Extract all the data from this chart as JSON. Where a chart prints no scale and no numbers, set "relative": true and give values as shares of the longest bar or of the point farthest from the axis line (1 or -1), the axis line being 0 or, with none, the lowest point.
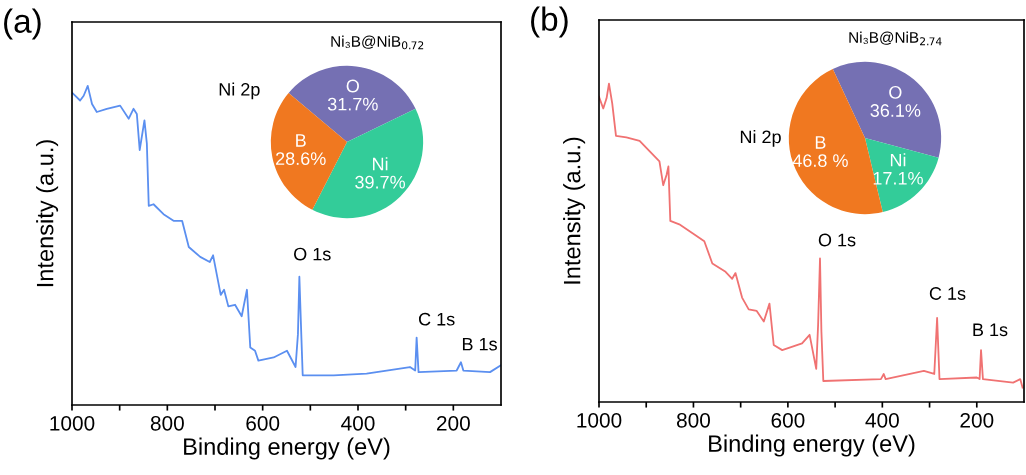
{
  "chart_data": [
    {
      "type": "line",
      "title": "(a)",
      "xlabel": "Binding energy (eV)",
      "ylabel": "Intensity (a.u.)",
      "relative": true,
      "xlim": [
        1000,
        100
      ],
      "xticks": [
        1000,
        {
          "value": 900,
          "label": null
        },
        800,
        {
          "value": 700,
          "label": null
        },
        600,
        {
          "value": 500,
          "label": null
        },
        400,
        {
          "value": 300,
          "label": null
        },
        200
      ],
      "series": [
        {
          "color": "#5b8ff0",
          "x": [
            1000,
            983,
            975.5,
            967,
            958,
            948,
            927,
            899,
            881,
            871,
            864,
            858,
            848,
            843,
            839,
            829,
            808,
            787,
            769,
            755,
            731,
            711,
            704,
            696,
            688,
            681,
            672,
            658,
            644,
            633,
            626,
            616,
            609,
            577,
            549,
            531,
            526,
            523,
            519,
            516,
            451,
            382,
            291,
            280,
            277,
            273,
            193,
            184,
            179,
            123,
            101
          ],
          "values": [
            0.979,
            0.954,
            0.969,
            1.0,
            0.943,
            0.918,
            0.928,
            0.938,
            0.897,
            0.928,
            0.912,
            0.799,
            0.892,
            0.82,
            0.624,
            0.629,
            0.598,
            0.577,
            0.577,
            0.495,
            0.464,
            0.448,
            0.469,
            0.407,
            0.345,
            0.361,
            0.309,
            0.314,
            0.278,
            0.361,
            0.18,
            0.17,
            0.139,
            0.149,
            0.17,
            0.119,
            0.222,
            0.402,
            0.222,
            0.093,
            0.093,
            0.098,
            0.119,
            0.108,
            0.211,
            0.103,
            0.108,
            0.134,
            0.108,
            0.103,
            0.124
          ]
        }
      ],
      "annotations": [
        "Ni 2p",
        "O 1s",
        "C 1s",
        "B 1s"
      ]
    },
    {
      "type": "pie",
      "title": "Ni₃B@NiB$_{0.72}$",
      "categories": [
        "O",
        "Ni",
        "B"
      ],
      "values": [
        31.7,
        39.7,
        28.6
      ],
      "colors": [
        "#7570b3",
        "#33cc99",
        "#f07820"
      ],
      "value_labels": [
        "31.7%",
        "39.7%",
        "28.6%"
      ]
    },
    {
      "type": "line",
      "title": "(b)",
      "xlabel": "Binding energy (eV)",
      "ylabel": "Intensity (a.u.)",
      "relative": true,
      "xlim": [
        1000,
        100
      ],
      "xticks": [
        1000,
        {
          "value": 900,
          "label": null
        },
        800,
        {
          "value": 700,
          "label": null
        },
        600,
        {
          "value": 500,
          "label": null
        },
        400,
        {
          "value": 300,
          "label": null
        },
        200
      ],
      "series": [
        {
          "color": "#f07272",
          "x": [
            1000,
            991,
            984,
            978.9,
            972,
            964,
            942,
            914,
            893,
            872,
            864,
            857,
            853,
            849,
            830,
            798,
            777,
            760,
            732,
            718,
            711,
            697,
            683,
            666,
            651,
            639,
            630,
            612,
            570,
            554,
            540,
            536,
            532,
            529,
            525,
            403,
            397,
            393,
            312,
            290,
            284,
            279,
            200,
            194,
            191,
            187,
            123,
            108,
            103
          ],
          "values": [
            0.959,
            0.922,
            0.954,
            1.0,
            0.938,
            0.836,
            0.831,
            0.82,
            0.788,
            0.756,
            0.681,
            0.713,
            0.74,
            0.569,
            0.558,
            0.526,
            0.505,
            0.435,
            0.409,
            0.387,
            0.405,
            0.328,
            0.291,
            0.286,
            0.253,
            0.309,
            0.179,
            0.163,
            0.184,
            0.211,
            0.104,
            0.243,
            0.451,
            0.221,
            0.066,
            0.072,
            0.088,
            0.072,
            0.098,
            0.088,
            0.264,
            0.072,
            0.077,
            0.072,
            0.163,
            0.072,
            0.061,
            0.072,
            0.045
          ]
        }
      ],
      "annotations": [
        "Ni 2p",
        "O 1s",
        "C 1s",
        "B 1s"
      ]
    },
    {
      "type": "pie",
      "title": "Ni₃B@NiB$_{2.74}$",
      "categories": [
        "O",
        "Ni",
        "B"
      ],
      "values": [
        36.1,
        17.1,
        46.8
      ],
      "colors": [
        "#7570b3",
        "#33cc99",
        "#f07820"
      ],
      "value_labels": [
        "36.1%",
        "17.1%",
        "46.8 %"
      ]
    }
  ]
}
